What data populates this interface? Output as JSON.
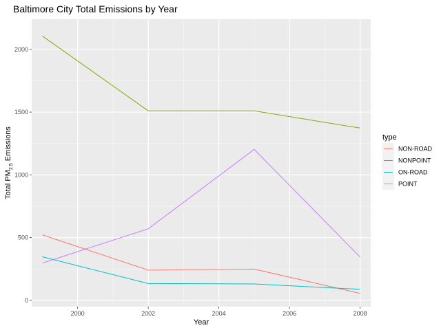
{
  "chart_data": {
    "type": "line",
    "title": "Baltimore City Total Emissions by Year",
    "xlabel": "Year",
    "ylabel": {
      "prefix": "Total PM",
      "subscript": "2.5",
      "suffix": " Emissions"
    },
    "x": [
      1999,
      2002,
      2005,
      2008
    ],
    "xlim": [
      1998.7,
      2008.3
    ],
    "ylim": [
      -50,
      2240
    ],
    "x_ticks": [
      2000,
      2002,
      2004,
      2006,
      2008
    ],
    "x_tick_labels": [
      "2000",
      "2002",
      "2004",
      "2006",
      "2008"
    ],
    "y_ticks": [
      0,
      500,
      1000,
      1500,
      2000
    ],
    "y_tick_labels": [
      "0",
      "500",
      "1000",
      "1500",
      "2000"
    ],
    "grid": true,
    "legend": {
      "title": "type",
      "placement": "right"
    },
    "series": [
      {
        "name": "NON-ROAD",
        "color": "#F8766D",
        "values": [
          522,
          241,
          249,
          55
        ]
      },
      {
        "name": "NONPOINT",
        "color": "#7CAE00",
        "values": [
          2107,
          1510,
          1510,
          1373
        ]
      },
      {
        "name": "ON-ROAD",
        "color": "#00BFC4",
        "values": [
          347,
          134,
          131,
          88
        ]
      },
      {
        "name": "POINT",
        "color": "#C77CFF",
        "values": [
          297,
          570,
          1203,
          345
        ]
      }
    ]
  }
}
